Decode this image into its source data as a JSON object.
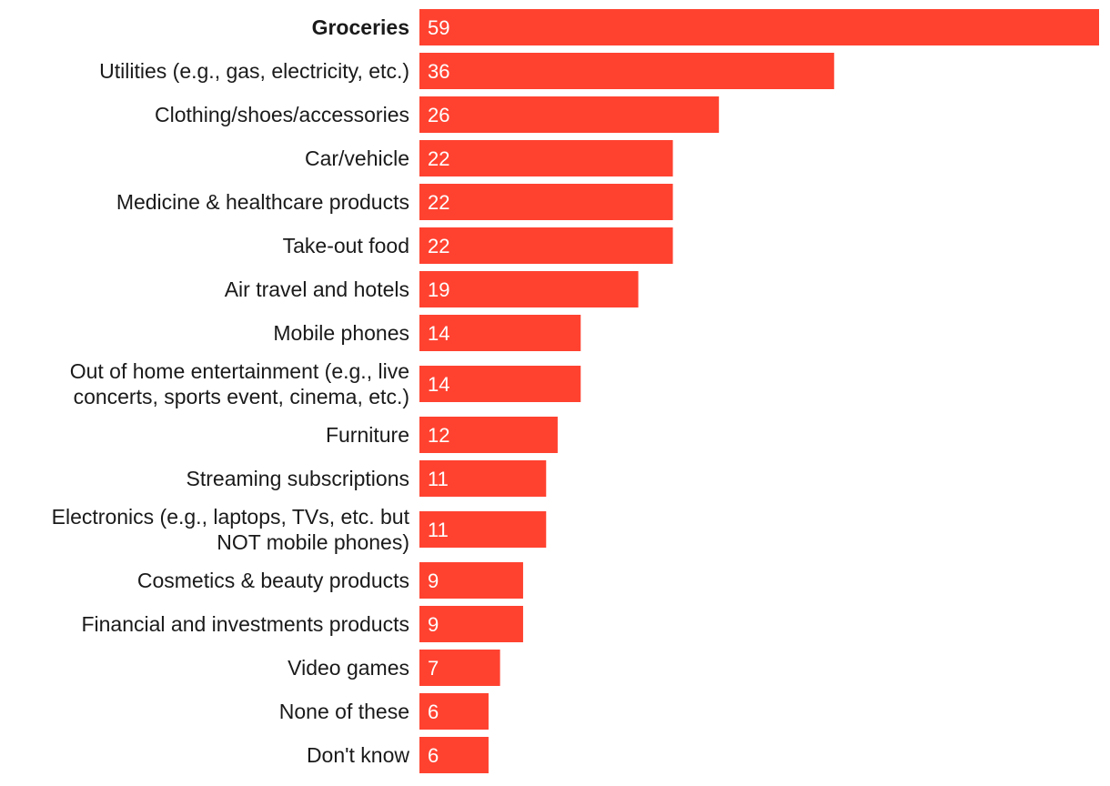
{
  "chart_data": {
    "type": "bar",
    "orientation": "horizontal",
    "categories": [
      [
        "Groceries"
      ],
      [
        "Utilities (e.g., gas, electricity, etc.)"
      ],
      [
        "Clothing/shoes/accessories"
      ],
      [
        "Car/vehicle"
      ],
      [
        "Medicine & healthcare products"
      ],
      [
        "Take-out food"
      ],
      [
        "Air travel and hotels"
      ],
      [
        "Mobile phones"
      ],
      [
        "Out of home entertainment (e.g., live",
        "concerts, sports event, cinema, etc.)"
      ],
      [
        "Furniture"
      ],
      [
        "Streaming subscriptions"
      ],
      [
        "Electronics (e.g., laptops, TVs, etc. but",
        "NOT mobile phones)"
      ],
      [
        "Cosmetics & beauty products"
      ],
      [
        "Financial and investments products"
      ],
      [
        "Video games"
      ],
      [
        "None of these"
      ],
      [
        "Don't know"
      ]
    ],
    "values": [
      59,
      36,
      26,
      22,
      22,
      22,
      19,
      14,
      14,
      12,
      11,
      11,
      9,
      9,
      7,
      6,
      6
    ],
    "highlighted_category_index": 0,
    "bar_color": "#ff4230",
    "value_label_color": "#ffffff",
    "title": "",
    "xlabel": "",
    "ylabel": "",
    "xlim": [
      0,
      59
    ],
    "grid": false,
    "legend": "none"
  }
}
